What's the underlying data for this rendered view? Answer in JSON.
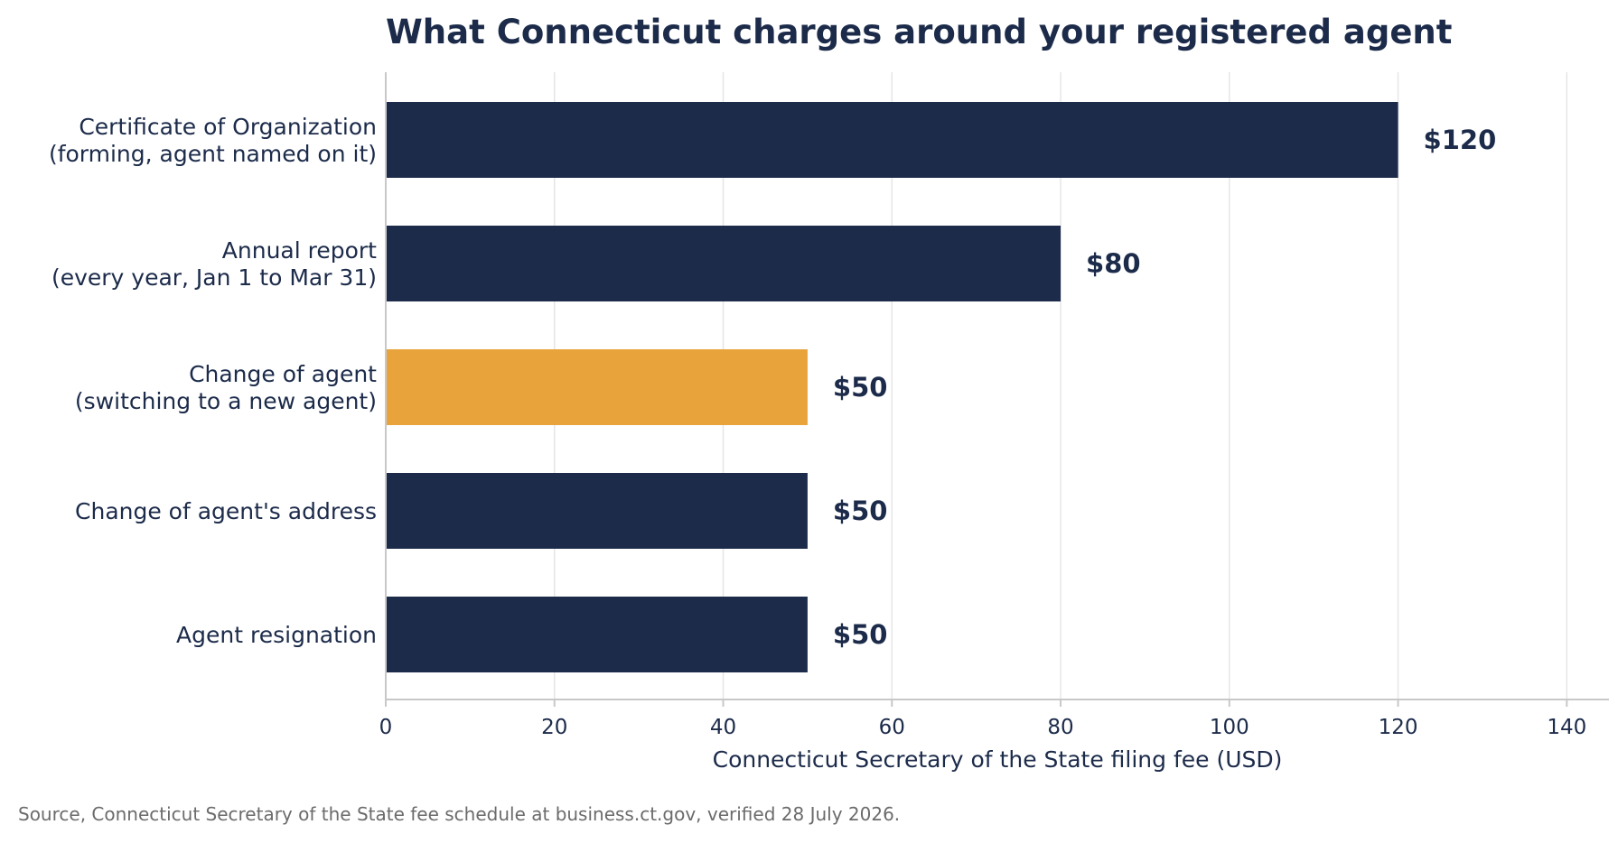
{
  "chart_data": {
    "type": "bar",
    "orientation": "horizontal",
    "title": "What Connecticut charges around your registered agent",
    "xlabel": "Connecticut Secretary of the State filing fee (USD)",
    "ylabel": "",
    "xlim": [
      0,
      145
    ],
    "xticks": [
      0,
      20,
      40,
      60,
      80,
      100,
      120,
      140
    ],
    "categories": [
      [
        "Certificate of Organization",
        "(forming, agent named on it)"
      ],
      [
        "Annual report",
        "(every year, Jan 1 to Mar 31)"
      ],
      [
        "Change of agent",
        "(switching to a new agent)"
      ],
      [
        "Change of agent's address"
      ],
      [
        "Agent resignation"
      ]
    ],
    "values": [
      120,
      80,
      50,
      50,
      50
    ],
    "value_labels": [
      "$120",
      "$80",
      "$50",
      "$50",
      "$50"
    ],
    "highlight_index": 2,
    "grid": "vertical",
    "source": "Source, Connecticut Secretary of the State fee schedule at business.ct.gov, verified 28 July 2026."
  },
  "colors": {
    "bar": "#1c2b4a",
    "highlight": "#e8a33b",
    "text": "#1c2b4a",
    "grid": "#e6e6e6",
    "axis": "#c8c8c8",
    "source_text": "#6b6b6b"
  }
}
